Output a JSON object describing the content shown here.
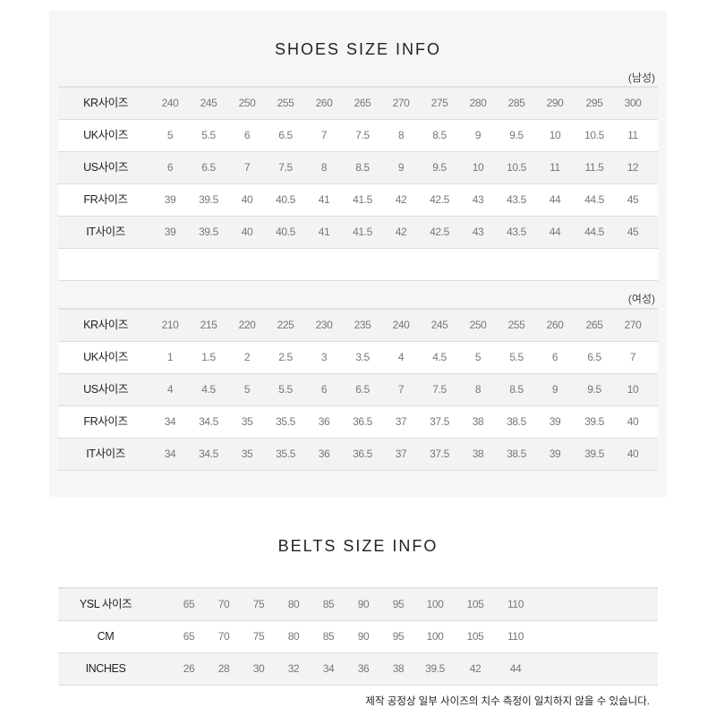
{
  "shoes": {
    "title": "SHOES SIZE INFO",
    "men": {
      "label": "(남성)",
      "rows": [
        {
          "label": "KR사이즈",
          "values": [
            "240",
            "245",
            "250",
            "255",
            "260",
            "265",
            "270",
            "275",
            "280",
            "285",
            "290",
            "295",
            "300"
          ]
        },
        {
          "label": "UK사이즈",
          "values": [
            "5",
            "5.5",
            "6",
            "6.5",
            "7",
            "7.5",
            "8",
            "8.5",
            "9",
            "9.5",
            "10",
            "10.5",
            "11"
          ]
        },
        {
          "label": "US사이즈",
          "values": [
            "6",
            "6.5",
            "7",
            "7.5",
            "8",
            "8.5",
            "9",
            "9.5",
            "10",
            "10.5",
            "11",
            "11.5",
            "12"
          ]
        },
        {
          "label": "FR사이즈",
          "values": [
            "39",
            "39.5",
            "40",
            "40.5",
            "41",
            "41.5",
            "42",
            "42.5",
            "43",
            "43.5",
            "44",
            "44.5",
            "45"
          ]
        },
        {
          "label": "IT사이즈",
          "values": [
            "39",
            "39.5",
            "40",
            "40.5",
            "41",
            "41.5",
            "42",
            "42.5",
            "43",
            "43.5",
            "44",
            "44.5",
            "45"
          ]
        }
      ]
    },
    "women": {
      "label": "(여성)",
      "rows": [
        {
          "label": "KR사이즈",
          "values": [
            "210",
            "215",
            "220",
            "225",
            "230",
            "235",
            "240",
            "245",
            "250",
            "255",
            "260",
            "265",
            "270"
          ]
        },
        {
          "label": "UK사이즈",
          "values": [
            "1",
            "1.5",
            "2",
            "2.5",
            "3",
            "3.5",
            "4",
            "4.5",
            "5",
            "5.5",
            "6",
            "6.5",
            "7"
          ]
        },
        {
          "label": "US사이즈",
          "values": [
            "4",
            "4.5",
            "5",
            "5.5",
            "6",
            "6.5",
            "7",
            "7.5",
            "8",
            "8.5",
            "9",
            "9.5",
            "10"
          ]
        },
        {
          "label": "FR사이즈",
          "values": [
            "34",
            "34.5",
            "35",
            "35.5",
            "36",
            "36.5",
            "37",
            "37.5",
            "38",
            "38.5",
            "39",
            "39.5",
            "40"
          ]
        },
        {
          "label": "IT사이즈",
          "values": [
            "34",
            "34.5",
            "35",
            "35.5",
            "36",
            "36.5",
            "37",
            "37.5",
            "38",
            "38.5",
            "39",
            "39.5",
            "40"
          ]
        }
      ]
    }
  },
  "belts": {
    "title": "BELTS SIZE INFO",
    "rows": [
      {
        "label": "YSL 사이즈",
        "values": [
          "65",
          "70",
          "75",
          "80",
          "85",
          "90",
          "95",
          "100",
          "105",
          "110"
        ]
      },
      {
        "label": "CM",
        "values": [
          "65",
          "70",
          "75",
          "80",
          "85",
          "90",
          "95",
          "100",
          "105",
          "110"
        ]
      },
      {
        "label": "INCHES",
        "values": [
          "26",
          "28",
          "30",
          "32",
          "34",
          "36",
          "38",
          "39.5",
          "42",
          "44"
        ]
      }
    ],
    "note": "제작 공정상 일부 사이즈의 치수 측정이 일치하지 않을 수 있습니다."
  }
}
